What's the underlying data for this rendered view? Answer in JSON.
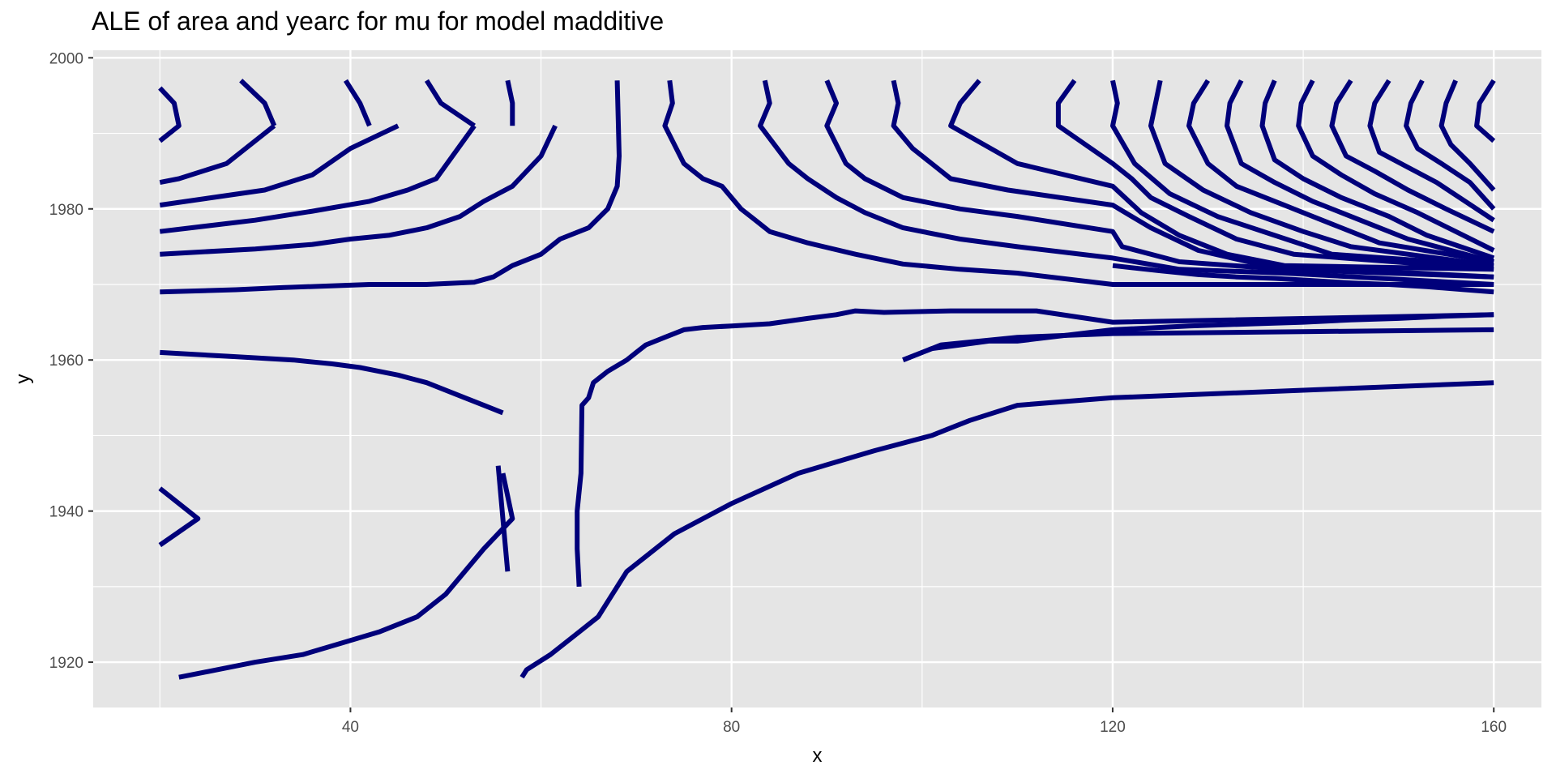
{
  "chart_data": {
    "type": "contour",
    "title": "ALE of area and yearc for mu for model madditive",
    "xlabel": "x",
    "ylabel": "y",
    "xlim": [
      13,
      165
    ],
    "ylim": [
      1914,
      2001
    ],
    "x_ticks": [
      40,
      80,
      120,
      160
    ],
    "y_ticks": [
      1920,
      1940,
      1960,
      1980,
      2000
    ],
    "x_tick_labels": [
      "40",
      "80",
      "120",
      "160"
    ],
    "y_tick_labels": [
      "1920",
      "1940",
      "1960",
      "1980",
      "2000"
    ],
    "background": "#e5e5e5",
    "grid_color": "#ffffff",
    "grid": true,
    "line_color": "#00007a",
    "series": [
      {
        "x": [
          20,
          21.5,
          22,
          20
        ],
        "y": [
          1996,
          1994,
          1991,
          1989
        ]
      },
      {
        "x": [
          20,
          22,
          27,
          32
        ],
        "y": [
          1983.5,
          1984,
          1986,
          1991
        ]
      },
      {
        "x": [
          28.5,
          31,
          32
        ],
        "y": [
          1997,
          1994,
          1991
        ]
      },
      {
        "x": [
          20,
          31,
          36,
          40,
          45
        ],
        "y": [
          1980.5,
          1982.5,
          1984.5,
          1988,
          1991
        ]
      },
      {
        "x": [
          39.5,
          41,
          42
        ],
        "y": [
          1997,
          1994,
          1991
        ]
      },
      {
        "x": [
          20,
          30,
          36,
          42,
          46,
          49,
          53
        ],
        "y": [
          1977,
          1978.5,
          1979.7,
          1981,
          1982.5,
          1984,
          1991
        ]
      },
      {
        "x": [
          48,
          49.5,
          53
        ],
        "y": [
          1997,
          1994,
          1991
        ]
      },
      {
        "x": [
          20,
          30,
          36,
          40,
          44,
          48,
          51.5,
          54,
          57,
          60,
          61.5
        ],
        "y": [
          1974,
          1974.7,
          1975.3,
          1976,
          1976.5,
          1977.5,
          1979,
          1981,
          1983,
          1987,
          1991
        ]
      },
      {
        "x": [
          56.5,
          57,
          57
        ],
        "y": [
          1997,
          1994,
          1991
        ]
      },
      {
        "x": [
          20,
          28,
          33,
          38,
          42,
          45,
          48,
          53,
          55,
          57,
          60,
          62,
          65,
          67,
          68,
          68.2,
          68
        ],
        "y": [
          1969,
          1969.3,
          1969.6,
          1969.8,
          1970,
          1970,
          1970,
          1970.3,
          1971,
          1972.5,
          1974,
          1976,
          1977.5,
          1980,
          1983,
          1987,
          1997
        ]
      },
      {
        "x": [
          20,
          27,
          34,
          38,
          41,
          43,
          45,
          46.5,
          48,
          52,
          54,
          56
        ],
        "y": [
          1961,
          1960.5,
          1960,
          1959.5,
          1959,
          1958.5,
          1958,
          1957.5,
          1957,
          1955,
          1954,
          1953
        ]
      },
      {
        "x": [
          55.5,
          56,
          56.5
        ],
        "y": [
          1946,
          1939,
          1932
        ]
      },
      {
        "x": [
          22,
          30,
          35,
          39,
          43,
          47,
          50,
          54,
          57,
          56
        ],
        "y": [
          1918,
          1920,
          1921,
          1922.5,
          1924,
          1926,
          1929,
          1935,
          1939,
          1945
        ]
      },
      {
        "x": [
          20,
          24,
          20
        ],
        "y": [
          1943,
          1939,
          1935.5
        ]
      },
      {
        "x": [
          58,
          58.5,
          61,
          64,
          66,
          67.5,
          69,
          71,
          74,
          80,
          87,
          95,
          101,
          103,
          105,
          110,
          120,
          160
        ],
        "y": [
          1918,
          1919,
          1921,
          1924,
          1926,
          1929,
          1932,
          1934,
          1937,
          1941,
          1945,
          1948,
          1950,
          1951,
          1952,
          1954,
          1955,
          1957
        ]
      },
      {
        "x": [
          64,
          63.8,
          63.8,
          64.2,
          64.3,
          65,
          65.5,
          66,
          67,
          69,
          70,
          71,
          73,
          75,
          77,
          80,
          84,
          88,
          91,
          93,
          96,
          103,
          112,
          120,
          160
        ],
        "y": [
          1930,
          1935,
          1940,
          1945,
          1954,
          1955,
          1957,
          1957.5,
          1958.5,
          1960,
          1961,
          1962,
          1963,
          1964,
          1964.3,
          1964.5,
          1964.8,
          1965.5,
          1966,
          1966.5,
          1966.3,
          1966.5,
          1966.5,
          1965,
          1966
        ]
      },
      {
        "x": [
          73.5,
          73.8,
          73,
          75,
          77,
          79,
          81,
          82.5,
          84,
          88,
          93,
          98,
          104,
          110,
          120,
          160
        ],
        "y": [
          1997,
          1994,
          1991,
          1986,
          1984,
          1983,
          1980,
          1978.5,
          1977,
          1975.5,
          1974,
          1972.7,
          1972,
          1971.5,
          1970,
          1970
        ]
      },
      {
        "x": [
          83.5,
          84,
          83,
          86,
          88,
          91,
          94,
          98,
          104,
          110,
          120,
          127,
          138,
          160
        ],
        "y": [
          1997,
          1994,
          1991,
          1986,
          1984,
          1981.5,
          1979.5,
          1977.5,
          1976,
          1975,
          1973.5,
          1972,
          1971.5,
          1970
        ]
      },
      {
        "x": [
          90,
          91,
          90,
          92,
          94,
          98,
          104,
          110,
          120,
          121,
          127,
          138,
          160
        ],
        "y": [
          1997,
          1994,
          1991,
          1986,
          1984,
          1981.5,
          1980,
          1979,
          1977,
          1975,
          1973,
          1972,
          1971
        ]
      },
      {
        "x": [
          97,
          97.5,
          97,
          99,
          101,
          103,
          109,
          120,
          124,
          129,
          136,
          160
        ],
        "y": [
          1997,
          1994,
          1991,
          1988,
          1986,
          1984,
          1982.5,
          1980.5,
          1977.5,
          1974.5,
          1972.5,
          1971
        ]
      },
      {
        "x": [
          106,
          104,
          103,
          110,
          120,
          123,
          127,
          132,
          138,
          160
        ],
        "y": [
          1997,
          1994,
          1991,
          1986,
          1983,
          1979.5,
          1976.5,
          1974,
          1972.5,
          1972
        ]
      },
      {
        "x": [
          116,
          114.3,
          114.3,
          120,
          122,
          124,
          128,
          133,
          139,
          160
        ],
        "y": [
          1997,
          1994,
          1991,
          1986,
          1984,
          1981.5,
          1979,
          1976,
          1974,
          1972
        ]
      },
      {
        "x": [
          120,
          120.5,
          120,
          122.3,
          126,
          131,
          137,
          143,
          160
        ],
        "y": [
          1997,
          1994,
          1991,
          1986,
          1982,
          1979,
          1976.5,
          1974,
          1972.5
        ]
      },
      {
        "x": [
          125,
          124.5,
          124,
          125.5,
          129.5,
          134.5,
          140,
          145,
          160
        ],
        "y": [
          1997,
          1994,
          1991,
          1986,
          1982.5,
          1979.5,
          1977,
          1975,
          1972.5
        ]
      },
      {
        "x": [
          130,
          128.5,
          128,
          130,
          133,
          138,
          143,
          148,
          160
        ],
        "y": [
          1997,
          1994,
          1991,
          1986,
          1983,
          1980.5,
          1978,
          1975.5,
          1973
        ]
      },
      {
        "x": [
          133.5,
          132.3,
          132,
          133.5,
          137,
          141,
          146,
          151,
          160
        ],
        "y": [
          1997,
          1994,
          1991,
          1986,
          1983.5,
          1981,
          1978.5,
          1976,
          1973
        ]
      },
      {
        "x": [
          137,
          136,
          135.7,
          137,
          140,
          144,
          149,
          153,
          160
        ],
        "y": [
          1997,
          1994,
          1991,
          1986.5,
          1984,
          1981.5,
          1979,
          1976.5,
          1973.5
        ]
      },
      {
        "x": [
          141,
          139.8,
          139.5,
          141,
          144,
          147.5,
          152,
          156,
          160
        ],
        "y": [
          1997,
          1994,
          1991,
          1987,
          1984.5,
          1982,
          1979.5,
          1977,
          1974.5
        ]
      },
      {
        "x": [
          145,
          143.5,
          143,
          144.5,
          147.5,
          151,
          155,
          160
        ],
        "y": [
          1997,
          1994,
          1991,
          1987,
          1985,
          1982.5,
          1980,
          1977
        ]
      },
      {
        "x": [
          149,
          147.5,
          147,
          148,
          151,
          154,
          157,
          160
        ],
        "y": [
          1997,
          1994,
          1991,
          1987.5,
          1985.5,
          1983.5,
          1981,
          1978.5
        ]
      },
      {
        "x": [
          152.5,
          151.3,
          150.8,
          152,
          154.5,
          157.5,
          160
        ],
        "y": [
          1997,
          1994,
          1991,
          1988,
          1986,
          1983.5,
          1980
        ]
      },
      {
        "x": [
          156,
          155,
          154.5,
          155.5,
          157.5,
          160
        ],
        "y": [
          1997,
          1994,
          1991,
          1988.5,
          1986,
          1982.5
        ]
      },
      {
        "x": [
          160,
          158.5,
          158.2,
          160
        ],
        "y": [
          1997,
          1994,
          1991,
          1989
        ]
      },
      {
        "x": [
          160,
          157,
          153,
          149,
          145,
          141,
          137,
          133,
          129,
          125,
          120
        ],
        "y": [
          1969,
          1969.3,
          1969.7,
          1970,
          1970.2,
          1970.5,
          1970.8,
          1971,
          1971.3,
          1971.8,
          1972.5
        ]
      },
      {
        "x": [
          98,
          102,
          110,
          120,
          160
        ],
        "y": [
          1960,
          1962,
          1963,
          1963.5,
          1964
        ]
      },
      {
        "x": [
          98,
          101,
          104,
          107,
          110,
          120,
          128,
          135,
          140,
          145,
          150,
          155,
          160
        ],
        "y": [
          1960,
          1961.5,
          1962,
          1962.5,
          1962.5,
          1964,
          1964.5,
          1964.8,
          1965,
          1965.3,
          1965.5,
          1965.8,
          1966
        ]
      }
    ]
  }
}
